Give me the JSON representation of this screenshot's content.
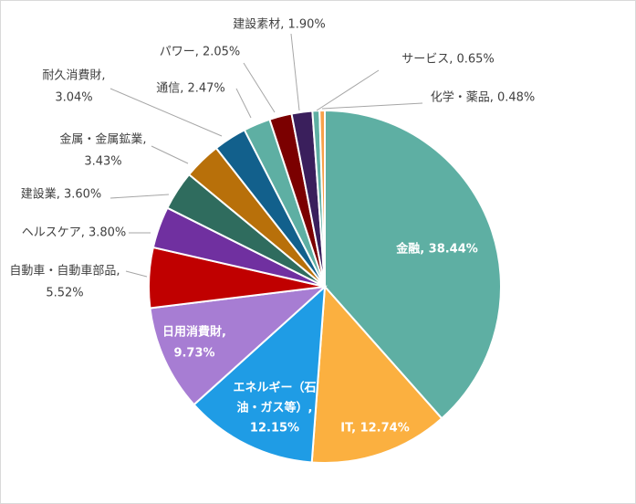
{
  "chart_data": {
    "type": "pie",
    "title": "",
    "start_angle_deg": 0,
    "direction": "clockwise",
    "legend": "none",
    "slices": [
      {
        "label": "金融",
        "value": 38.44,
        "value_text": "38.44%",
        "color": "#5eafa3"
      },
      {
        "label": "IT",
        "value": 12.74,
        "value_text": "12.74%",
        "color": "#fbb040"
      },
      {
        "label": "エネルギー（石油・ガス等）",
        "value": 12.15,
        "value_text": "12.15%",
        "color": "#1f9ce5"
      },
      {
        "label": "日用消費財",
        "value": 9.73,
        "value_text": "9.73%",
        "color": "#a77dd3"
      },
      {
        "label": "自動車・自動車部品",
        "value": 5.52,
        "value_text": "5.52%",
        "color": "#c00000"
      },
      {
        "label": "ヘルスケア",
        "value": 3.8,
        "value_text": "3.80%",
        "color": "#7030a0"
      },
      {
        "label": "建設業",
        "value": 3.6,
        "value_text": "3.60%",
        "color": "#2f6c5e"
      },
      {
        "label": "金属・金属鉱業",
        "value": 3.43,
        "value_text": "3.43%",
        "color": "#b8700a"
      },
      {
        "label": "耐久消費財",
        "value": 3.04,
        "value_text": "3.04%",
        "color": "#12608c"
      },
      {
        "label": "通信",
        "value": 2.47,
        "value_text": "2.47%",
        "color": "#5eafa3"
      },
      {
        "label": "パワー",
        "value": 2.05,
        "value_text": "2.05%",
        "color": "#7b0000"
      },
      {
        "label": "建設素材",
        "value": 1.9,
        "value_text": "1.90%",
        "color": "#3a1f5c"
      },
      {
        "label": "サービス",
        "value": 0.65,
        "value_text": "0.65%",
        "color": "#5eafa3"
      },
      {
        "label": "化学・薬品",
        "value": 0.48,
        "value_text": "0.48%",
        "color": "#f7a14a"
      }
    ]
  }
}
